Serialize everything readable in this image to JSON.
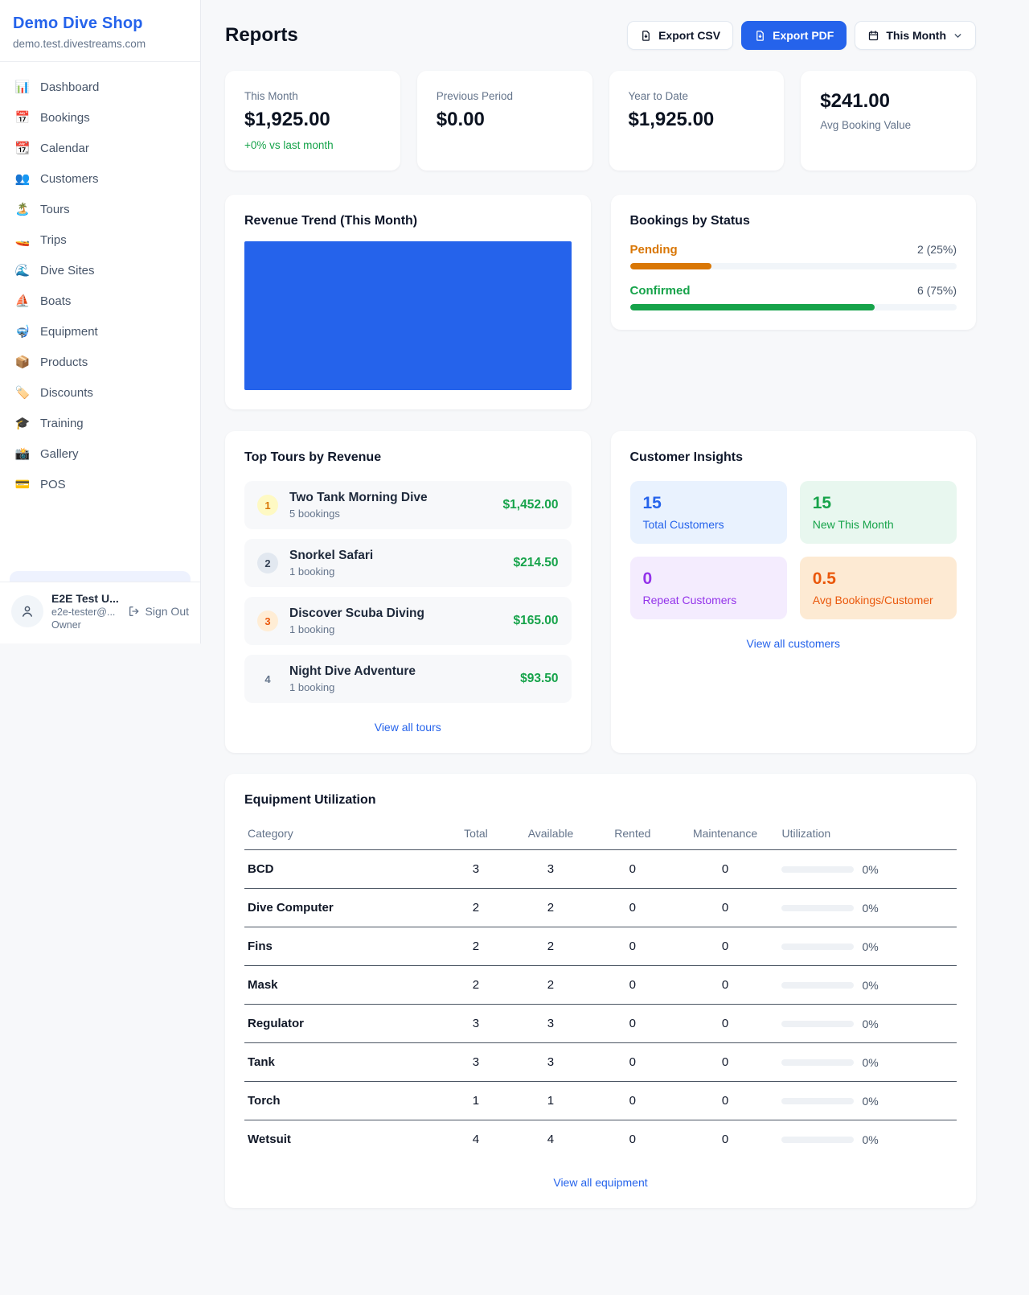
{
  "brand": {
    "name": "Demo Dive Shop",
    "domain": "demo.test.divestreams.com"
  },
  "sidebar": {
    "items": [
      {
        "label": "Dashboard",
        "icon": "📊",
        "icon_name": "dashboard-chart-icon"
      },
      {
        "label": "Bookings",
        "icon": "📅",
        "icon_name": "bookings-calendar-icon"
      },
      {
        "label": "Calendar",
        "icon": "📆",
        "icon_name": "calendar-icon"
      },
      {
        "label": "Customers",
        "icon": "👥",
        "icon_name": "customers-people-icon"
      },
      {
        "label": "Tours",
        "icon": "🏝️",
        "icon_name": "tours-island-icon"
      },
      {
        "label": "Trips",
        "icon": "🚤",
        "icon_name": "trips-speedboat-icon"
      },
      {
        "label": "Dive Sites",
        "icon": "🌊",
        "icon_name": "dive-sites-wave-icon"
      },
      {
        "label": "Boats",
        "icon": "⛵",
        "icon_name": "boats-sailboat-icon"
      },
      {
        "label": "Equipment",
        "icon": "🤿",
        "icon_name": "equipment-mask-icon"
      },
      {
        "label": "Products",
        "icon": "📦",
        "icon_name": "products-box-icon"
      },
      {
        "label": "Discounts",
        "icon": "🏷️",
        "icon_name": "discounts-tag-icon"
      },
      {
        "label": "Training",
        "icon": "🎓",
        "icon_name": "training-cap-icon"
      },
      {
        "label": "Gallery",
        "icon": "📸",
        "icon_name": "gallery-camera-icon"
      },
      {
        "label": "POS",
        "icon": "💳",
        "icon_name": "pos-card-icon"
      }
    ],
    "user": {
      "name": "E2E Test U...",
      "email": "e2e-tester@...",
      "role": "Owner",
      "sign_out": "Sign Out"
    }
  },
  "header": {
    "title": "Reports",
    "export_csv": "Export CSV",
    "export_pdf": "Export PDF",
    "period": "This Month"
  },
  "stats": [
    {
      "label": "This Month",
      "value": "$1,925.00",
      "delta": "+0% vs last month",
      "value_first": false
    },
    {
      "label": "Previous Period",
      "value": "$0.00",
      "delta": "",
      "value_first": false
    },
    {
      "label": "Year to Date",
      "value": "$1,925.00",
      "delta": "",
      "value_first": false
    },
    {
      "label": "Avg Booking Value",
      "value": "$241.00",
      "delta": "",
      "value_first": true
    }
  ],
  "revenue_trend": {
    "title": "Revenue Trend (This Month)",
    "fill_color": "#2563eb"
  },
  "bookings_by_status": {
    "title": "Bookings by Status",
    "rows": [
      {
        "label": "Pending",
        "count": "2 (25%)",
        "pct": 25,
        "color": "#d97706"
      },
      {
        "label": "Confirmed",
        "count": "6 (75%)",
        "pct": 75,
        "color": "#16a34a"
      }
    ]
  },
  "top_tours": {
    "title": "Top Tours by Revenue",
    "link": "View all tours",
    "items": [
      {
        "rank": "1",
        "name": "Two Tank Morning Dive",
        "bookings": "5 bookings",
        "revenue": "$1,452.00",
        "badge_color": "#d97706",
        "badge_bg": "#fef9c3"
      },
      {
        "rank": "2",
        "name": "Snorkel Safari",
        "bookings": "1 booking",
        "revenue": "$214.50",
        "badge_color": "#334155",
        "badge_bg": "#e2e8f0"
      },
      {
        "rank": "3",
        "name": "Discover Scuba Diving",
        "bookings": "1 booking",
        "revenue": "$165.00",
        "badge_color": "#ea580c",
        "badge_bg": "#ffedd5"
      },
      {
        "rank": "4",
        "name": "Night Dive Adventure",
        "bookings": "1 booking",
        "revenue": "$93.50",
        "badge_color": "#64748b",
        "badge_bg": "transparent"
      }
    ]
  },
  "customer_insights": {
    "title": "Customer Insights",
    "link": "View all customers",
    "tiles": [
      {
        "value": "15",
        "label": "Total Customers",
        "color": "#2563eb",
        "bg": "#e9f2fe"
      },
      {
        "value": "15",
        "label": "New This Month",
        "color": "#16a34a",
        "bg": "#e8f7ef"
      },
      {
        "value": "0",
        "label": "Repeat Customers",
        "color": "#9333ea",
        "bg": "#f4ecfe"
      },
      {
        "value": "0.5",
        "label": "Avg Bookings/Customer",
        "color": "#ea580c",
        "bg": "#fdead3"
      }
    ]
  },
  "equipment": {
    "title": "Equipment Utilization",
    "link": "View all equipment",
    "columns": [
      "Category",
      "Total",
      "Available",
      "Rented",
      "Maintenance",
      "Utilization"
    ],
    "rows": [
      {
        "category": "BCD",
        "total": "3",
        "available": "3",
        "rented": "0",
        "maintenance": "0",
        "utilization": "0%"
      },
      {
        "category": "Dive Computer",
        "total": "2",
        "available": "2",
        "rented": "0",
        "maintenance": "0",
        "utilization": "0%"
      },
      {
        "category": "Fins",
        "total": "2",
        "available": "2",
        "rented": "0",
        "maintenance": "0",
        "utilization": "0%"
      },
      {
        "category": "Mask",
        "total": "2",
        "available": "2",
        "rented": "0",
        "maintenance": "0",
        "utilization": "0%"
      },
      {
        "category": "Regulator",
        "total": "3",
        "available": "3",
        "rented": "0",
        "maintenance": "0",
        "utilization": "0%"
      },
      {
        "category": "Tank",
        "total": "3",
        "available": "3",
        "rented": "0",
        "maintenance": "0",
        "utilization": "0%"
      },
      {
        "category": "Torch",
        "total": "1",
        "available": "1",
        "rented": "0",
        "maintenance": "0",
        "utilization": "0%"
      },
      {
        "category": "Wetsuit",
        "total": "4",
        "available": "4",
        "rented": "0",
        "maintenance": "0",
        "utilization": "0%"
      }
    ]
  }
}
